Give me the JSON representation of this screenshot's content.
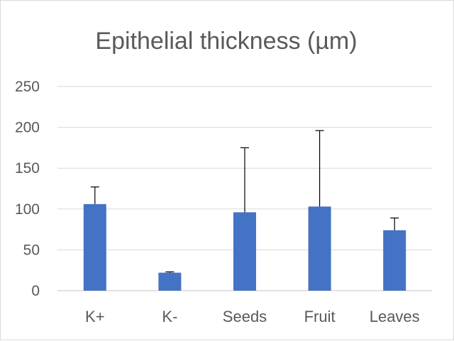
{
  "chart_data": {
    "type": "bar",
    "title": "Epithelial thickness (µm)",
    "categories": [
      "K+",
      "K-",
      "Seeds",
      "Fruit",
      "Leaves"
    ],
    "values": [
      106,
      22,
      96,
      103,
      74
    ],
    "error_upper": [
      21,
      1,
      79,
      93,
      15
    ],
    "ylim": [
      0,
      250
    ],
    "yticks": [
      0,
      50,
      100,
      150,
      200,
      250
    ],
    "grid": true,
    "legend": "none",
    "colors": {
      "bar": "#4472c4",
      "grid": "#d9d9d9",
      "error_bar": "#000000",
      "text": "#595959"
    }
  }
}
